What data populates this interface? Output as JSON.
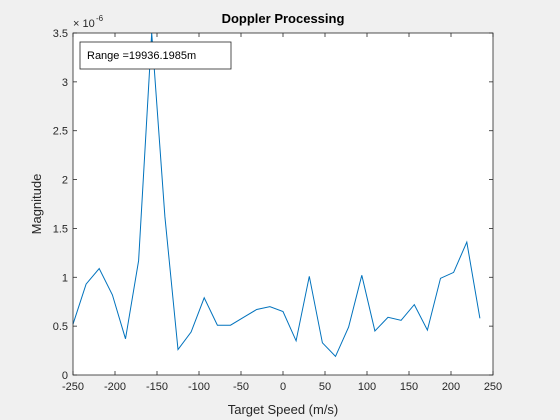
{
  "chart_data": {
    "type": "line",
    "title": "Doppler Processing",
    "xlabel": "Target Speed (m/s)",
    "ylabel": "Magnitude",
    "xlim": [
      -250,
      250
    ],
    "ylim": [
      0,
      3.5
    ],
    "y_exponent_base": "× 10",
    "y_exponent_power": "-6",
    "xticks": [
      -250,
      -200,
      -150,
      -100,
      -50,
      0,
      50,
      100,
      150,
      200,
      250
    ],
    "yticks": [
      0,
      0.5,
      1,
      1.5,
      2,
      2.5,
      3,
      3.5
    ],
    "xtick_labels": [
      "-250",
      "-200",
      "-150",
      "-100",
      "-50",
      "0",
      "50",
      "100",
      "150",
      "200",
      "250"
    ],
    "ytick_labels": [
      "0",
      "0.5",
      "1",
      "1.5",
      "2",
      "2.5",
      "3",
      "3.5"
    ],
    "grid": false,
    "annotation": "Range =19936.1985m",
    "series": [
      {
        "color": "#0072bd",
        "x": [
          -250,
          -234.4,
          -218.8,
          -203.1,
          -187.5,
          -171.9,
          -156.3,
          -140.6,
          -125,
          -109.4,
          -93.8,
          -78.1,
          -62.5,
          -46.9,
          -31.3,
          -15.6,
          0,
          15.6,
          31.3,
          46.9,
          62.5,
          78.1,
          93.8,
          109.4,
          125,
          140.6,
          156.3,
          171.9,
          187.5,
          203.1,
          218.8,
          234.4
        ],
        "y": [
          0.52,
          0.93,
          1.09,
          0.82,
          0.37,
          1.17,
          3.5,
          1.62,
          0.26,
          0.44,
          0.79,
          0.51,
          0.51,
          0.59,
          0.67,
          0.7,
          0.65,
          0.35,
          1.01,
          0.33,
          0.19,
          0.49,
          1.02,
          0.45,
          0.59,
          0.56,
          0.72,
          0.46,
          0.99,
          1.05,
          1.36,
          0.58
        ]
      }
    ]
  }
}
